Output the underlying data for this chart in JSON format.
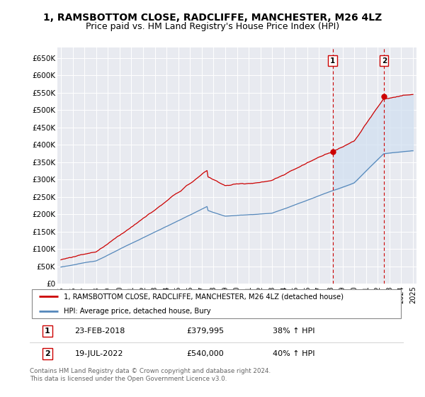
{
  "title": "1, RAMSBOTTOM CLOSE, RADCLIFFE, MANCHESTER, M26 4LZ",
  "subtitle": "Price paid vs. HM Land Registry's House Price Index (HPI)",
  "ylim": [
    0,
    680000
  ],
  "yticks": [
    0,
    50000,
    100000,
    150000,
    200000,
    250000,
    300000,
    350000,
    400000,
    450000,
    500000,
    550000,
    600000,
    650000
  ],
  "ytick_labels": [
    "£0",
    "£50K",
    "£100K",
    "£150K",
    "£200K",
    "£250K",
    "£300K",
    "£350K",
    "£400K",
    "£450K",
    "£500K",
    "£550K",
    "£600K",
    "£650K"
  ],
  "red_color": "#cc0000",
  "blue_color": "#5588bb",
  "fill_color": "#d0e0f0",
  "marker1_year": 2018.15,
  "marker1_price": 379995,
  "marker2_year": 2022.54,
  "marker2_price": 540000,
  "legend_entry1": "1, RAMSBOTTOM CLOSE, RADCLIFFE, MANCHESTER, M26 4LZ (detached house)",
  "legend_entry2": "HPI: Average price, detached house, Bury",
  "table_rows": [
    {
      "num": "1",
      "date": "23-FEB-2018",
      "price": "£379,995",
      "change": "38% ↑ HPI"
    },
    {
      "num": "2",
      "date": "19-JUL-2022",
      "price": "£540,000",
      "change": "40% ↑ HPI"
    }
  ],
  "footer": "Contains HM Land Registry data © Crown copyright and database right 2024.\nThis data is licensed under the Open Government Licence v3.0.",
  "background_color": "#ffffff",
  "plot_bg_color": "#e8eaf0",
  "grid_color": "#ffffff",
  "vline_color": "#cc0000",
  "title_fontsize": 10,
  "subtitle_fontsize": 9,
  "tick_fontsize": 7.5
}
